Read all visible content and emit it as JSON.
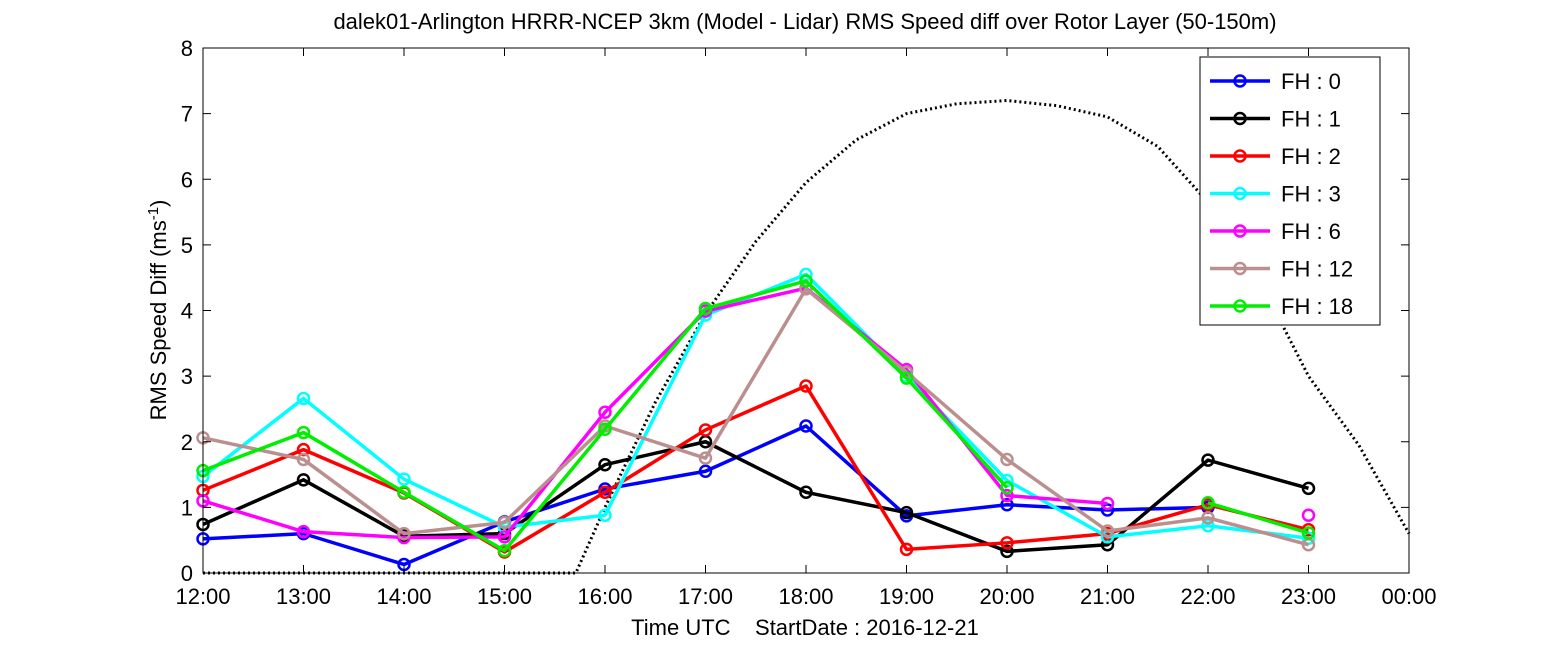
{
  "chart_data": {
    "type": "line",
    "title": "dalek01-Arlington HRRR-NCEP 3km (Model - Lidar) RMS Speed diff over Rotor Layer (50-150m)",
    "xlabel": "Time UTC    StartDate : 2016-12-21",
    "ylabel_main": "RMS Speed Diff (ms",
    "ylabel_sup": "-1",
    "ylabel_close": ")",
    "x_tick_labels": [
      "12:00",
      "13:00",
      "14:00",
      "15:00",
      "16:00",
      "17:00",
      "18:00",
      "19:00",
      "20:00",
      "21:00",
      "22:00",
      "23:00",
      "00:00"
    ],
    "y_tick_labels": [
      "0",
      "1",
      "2",
      "3",
      "4",
      "5",
      "6",
      "7",
      "8"
    ],
    "xlim": [
      12,
      24
    ],
    "ylim": [
      0,
      8
    ],
    "grid": false,
    "legend_position": "top-right",
    "series": [
      {
        "name": "FH : 0",
        "color": "#0000ff",
        "x": [
          12,
          13,
          14,
          15,
          16,
          17,
          18,
          19,
          20,
          21,
          22
        ],
        "y": [
          0.52,
          0.6,
          0.13,
          0.78,
          1.28,
          1.55,
          2.24,
          0.87,
          1.04,
          0.96,
          1.0
        ]
      },
      {
        "name": "FH : 1",
        "color": "#000000",
        "x": [
          12,
          13,
          14,
          15,
          16,
          17,
          18,
          19,
          20,
          21,
          22,
          23
        ],
        "y": [
          0.74,
          1.42,
          0.56,
          0.6,
          1.65,
          2.0,
          1.23,
          0.92,
          0.33,
          0.43,
          1.72,
          1.29
        ]
      },
      {
        "name": "FH : 2",
        "color": "#ff0000",
        "x": [
          12,
          13,
          14,
          15,
          16,
          17,
          18,
          19,
          20,
          21,
          22,
          23
        ],
        "y": [
          1.26,
          1.88,
          1.22,
          0.32,
          1.23,
          2.18,
          2.85,
          0.36,
          0.46,
          0.6,
          1.04,
          0.66
        ]
      },
      {
        "name": "FH : 3",
        "color": "#00ffff",
        "x": [
          12,
          13,
          14,
          15,
          16,
          17,
          18,
          19,
          20,
          21,
          22,
          23
        ],
        "y": [
          1.47,
          2.66,
          1.43,
          0.7,
          0.88,
          3.93,
          4.55,
          3.0,
          1.41,
          0.55,
          0.72,
          0.53
        ]
      },
      {
        "name": "FH : 6",
        "color": "#ff00ff",
        "x": [
          12,
          13,
          14,
          15,
          16,
          17,
          18,
          19,
          20,
          21,
          22,
          23
        ],
        "y": [
          1.1,
          0.63,
          0.54,
          0.55,
          2.45,
          3.99,
          4.34,
          3.1,
          1.18,
          1.06,
          null,
          0.88
        ]
      },
      {
        "name": "FH : 12",
        "color": "#bc8f8f",
        "x": [
          12,
          13,
          14,
          15,
          16,
          17,
          18,
          19,
          20,
          21,
          22,
          23
        ],
        "y": [
          2.06,
          1.73,
          0.6,
          0.77,
          2.24,
          1.75,
          4.33,
          3.06,
          1.73,
          0.64,
          0.84,
          0.43
        ]
      },
      {
        "name": "FH : 18",
        "color": "#00ee00",
        "x": [
          12,
          13,
          14,
          15,
          16,
          17,
          18,
          19,
          20,
          21,
          22,
          23
        ],
        "y": [
          1.56,
          2.14,
          1.23,
          0.34,
          2.19,
          4.03,
          4.45,
          2.97,
          1.3,
          null,
          1.07,
          0.61
        ]
      }
    ],
    "reference_curve": {
      "style": "dotted",
      "color": "#000000",
      "x": [
        12,
        12.5,
        13,
        13.5,
        14,
        14.5,
        15,
        15.5,
        15.71,
        16,
        16.5,
        17,
        17.5,
        18,
        18.5,
        19,
        19.5,
        20,
        20.5,
        21,
        21.5,
        22,
        22.5,
        23,
        23.5,
        24
      ],
      "y": [
        0,
        0,
        0,
        0,
        0,
        0,
        0,
        0,
        0,
        1.0,
        2.6,
        3.95,
        5.05,
        5.95,
        6.6,
        7.0,
        7.15,
        7.2,
        7.12,
        6.95,
        6.5,
        5.65,
        4.5,
        3.0,
        1.95,
        0.6
      ]
    }
  }
}
